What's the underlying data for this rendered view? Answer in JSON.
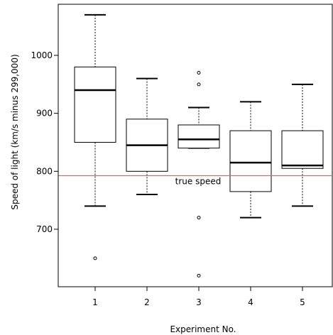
{
  "chart_data": {
    "type": "box",
    "title": "",
    "xlabel": "Experiment No.",
    "ylabel": "Speed of light (km/s minus 299,000)",
    "categories": [
      "1",
      "2",
      "3",
      "4",
      "5"
    ],
    "yticks": [
      700,
      800,
      900,
      1000
    ],
    "ylim": [
      605,
      1090
    ],
    "grid": false,
    "boxes": [
      {
        "label": "1",
        "whisker_low": 740,
        "q1": 850,
        "median": 940,
        "q3": 980,
        "whisker_high": 1070,
        "outliers": [
          650
        ]
      },
      {
        "label": "2",
        "whisker_low": 760,
        "q1": 800,
        "median": 845,
        "q3": 890,
        "whisker_high": 960,
        "outliers": []
      },
      {
        "label": "3",
        "whisker_low": 840,
        "q1": 840,
        "median": 855,
        "q3": 880,
        "whisker_high": 910,
        "outliers": [
          620,
          720,
          950,
          970
        ]
      },
      {
        "label": "4",
        "whisker_low": 720,
        "q1": 765,
        "median": 815,
        "q3": 870,
        "whisker_high": 920,
        "outliers": []
      },
      {
        "label": "5",
        "whisker_low": 740,
        "q1": 805,
        "median": 810,
        "q3": 870,
        "whisker_high": 950,
        "outliers": []
      }
    ],
    "reference_line": {
      "value": 792.458,
      "label": "true speed",
      "color": "#e06666"
    }
  }
}
